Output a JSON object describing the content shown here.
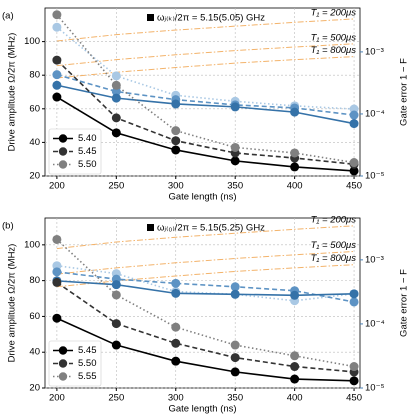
{
  "chart_data": [
    {
      "type": "line",
      "panel_label": "(a)",
      "annotation": "ωⱼ₍ₖ₎/2π = 5.15(5.05) GHz",
      "xlabel": "Gate length (ns)",
      "ylabel": "Drive amplitude Ω/2π (MHz)",
      "y2label": "Gate error 1 − F",
      "x": [
        200,
        250,
        300,
        350,
        400,
        450
      ],
      "xlim": [
        190,
        455
      ],
      "xticks": [
        200,
        250,
        300,
        350,
        400,
        450
      ],
      "ylim": [
        20,
        120
      ],
      "yticks": [
        20,
        40,
        60,
        80,
        100
      ],
      "y2log": true,
      "y2lim": [
        1e-05,
        0.0051
      ],
      "y2ticks": [
        {
          "value": 1e-05,
          "label": "10⁻⁵"
        },
        {
          "value": 0.0001,
          "label": "10⁻⁴"
        },
        {
          "value": 0.001,
          "label": "10⁻³"
        }
      ],
      "grid": true,
      "legend": "lower left",
      "series": [
        {
          "name": "T₁ = 200μs",
          "color": "#f3b36b",
          "linestyle": "dashdot",
          "axis": "y2",
          "values": [
            0.0015,
            0.0019,
            0.00225,
            0.0026,
            0.003,
            0.0034
          ]
        },
        {
          "name": "T₁ = 500μs",
          "color": "#f3b36b",
          "linestyle": "dashdot",
          "axis": "y2",
          "values": [
            0.0006,
            0.00075,
            0.0009,
            0.00105,
            0.0012,
            0.00135
          ]
        },
        {
          "name": "T₁ = 800μs",
          "color": "#f3b36b",
          "linestyle": "dashdot",
          "axis": "y2",
          "values": [
            0.00038,
            0.00047,
            0.00056,
            0.00066,
            0.00075,
            0.00084
          ]
        },
        {
          "color": "#a9c8e4",
          "linestyle": "dotted",
          "marker": "o",
          "axis": "y2",
          "values": [
            0.0025,
            0.00041,
            0.0002,
            0.00016,
            0.000135,
            0.00012
          ]
        },
        {
          "color": "#5d93c4",
          "linestyle": "dashed",
          "marker": "o",
          "axis": "y2",
          "values": [
            0.00043,
            0.00023,
            0.00017,
            0.00014,
            0.000125,
            9.6e-05
          ]
        },
        {
          "color": "#3572a8",
          "linestyle": "solid",
          "marker": "o",
          "axis": "y2",
          "values": [
            0.00029,
            0.00018,
            0.000145,
            0.00013,
            0.000107,
            7e-05
          ]
        },
        {
          "name": "5.40",
          "color": "#000000",
          "linestyle": "solid",
          "marker": "o",
          "values": [
            67,
            45.7,
            35.5,
            29,
            25.4,
            23
          ]
        },
        {
          "name": "5.45",
          "color": "#333333",
          "linestyle": "dashed",
          "marker": "o",
          "values": [
            89,
            54.6,
            41,
            33.7,
            30.7,
            27
          ]
        },
        {
          "name": "5.50",
          "color": "#808080",
          "linestyle": "dotted",
          "marker": "o",
          "values": [
            116,
            74,
            47,
            37,
            33.7,
            28
          ]
        }
      ]
    },
    {
      "type": "line",
      "panel_label": "(b)",
      "annotation": "ωⱼ₍₀₎/2π = 5.15(5.25) GHz",
      "xlabel": "Gate length (ns)",
      "ylabel": "Drive amplitude Ω/2π (MHz)",
      "y2label": "Gate error 1 − F",
      "x": [
        200,
        250,
        300,
        350,
        400,
        450
      ],
      "xlim": [
        190,
        455
      ],
      "xticks": [
        200,
        250,
        300,
        350,
        400,
        450
      ],
      "ylim": [
        20,
        115
      ],
      "yticks": [
        20,
        40,
        60,
        80,
        100
      ],
      "y2log": true,
      "y2lim": [
        1e-05,
        0.0045
      ],
      "y2ticks": [
        {
          "value": 1e-05,
          "label": "10⁻⁵"
        },
        {
          "value": 0.0001,
          "label": "10⁻⁴"
        },
        {
          "value": 0.001,
          "label": "10⁻³"
        }
      ],
      "grid": true,
      "legend": "lower left",
      "series": [
        {
          "name": "T₁ = 200μs",
          "color": "#f3b36b",
          "linestyle": "dashdot",
          "axis": "y2",
          "values": [
            0.0015,
            0.0019,
            0.00225,
            0.0026,
            0.003,
            0.0034
          ]
        },
        {
          "name": "T₁ = 500μs",
          "color": "#f3b36b",
          "linestyle": "dashdot",
          "axis": "y2",
          "values": [
            0.0006,
            0.00075,
            0.0009,
            0.00105,
            0.0012,
            0.00135
          ]
        },
        {
          "name": "T₁ = 800μs",
          "color": "#f3b36b",
          "linestyle": "dashdot",
          "axis": "y2",
          "values": [
            0.00038,
            0.00047,
            0.00056,
            0.00066,
            0.00075,
            0.00084
          ]
        },
        {
          "color": "#a9c8e4",
          "linestyle": "dotted",
          "marker": "o",
          "axis": "y2",
          "values": [
            0.00081,
            0.00061,
            0.00032,
            0.00029,
            0.00023,
            0.000295
          ]
        },
        {
          "color": "#5d93c4",
          "linestyle": "dashed",
          "marker": "o",
          "axis": "y2",
          "values": [
            0.00065,
            0.0005,
            0.00043,
            0.00038,
            0.00033,
            0.00022
          ]
        },
        {
          "color": "#3572a8",
          "linestyle": "solid",
          "marker": "o",
          "axis": "y2",
          "values": [
            0.00047,
            0.00041,
            0.0003,
            0.00029,
            0.00028,
            0.000295
          ]
        },
        {
          "name": "5.45",
          "color": "#000000",
          "linestyle": "solid",
          "marker": "o",
          "values": [
            59,
            44,
            35,
            29,
            25,
            24
          ]
        },
        {
          "name": "5.50",
          "color": "#333333",
          "linestyle": "dashed",
          "marker": "o",
          "values": [
            79,
            56,
            45,
            37,
            32,
            29
          ]
        },
        {
          "name": "5.55",
          "color": "#808080",
          "linestyle": "dotted",
          "marker": "o",
          "values": [
            103,
            72,
            54,
            44,
            38,
            32
          ]
        }
      ]
    }
  ]
}
